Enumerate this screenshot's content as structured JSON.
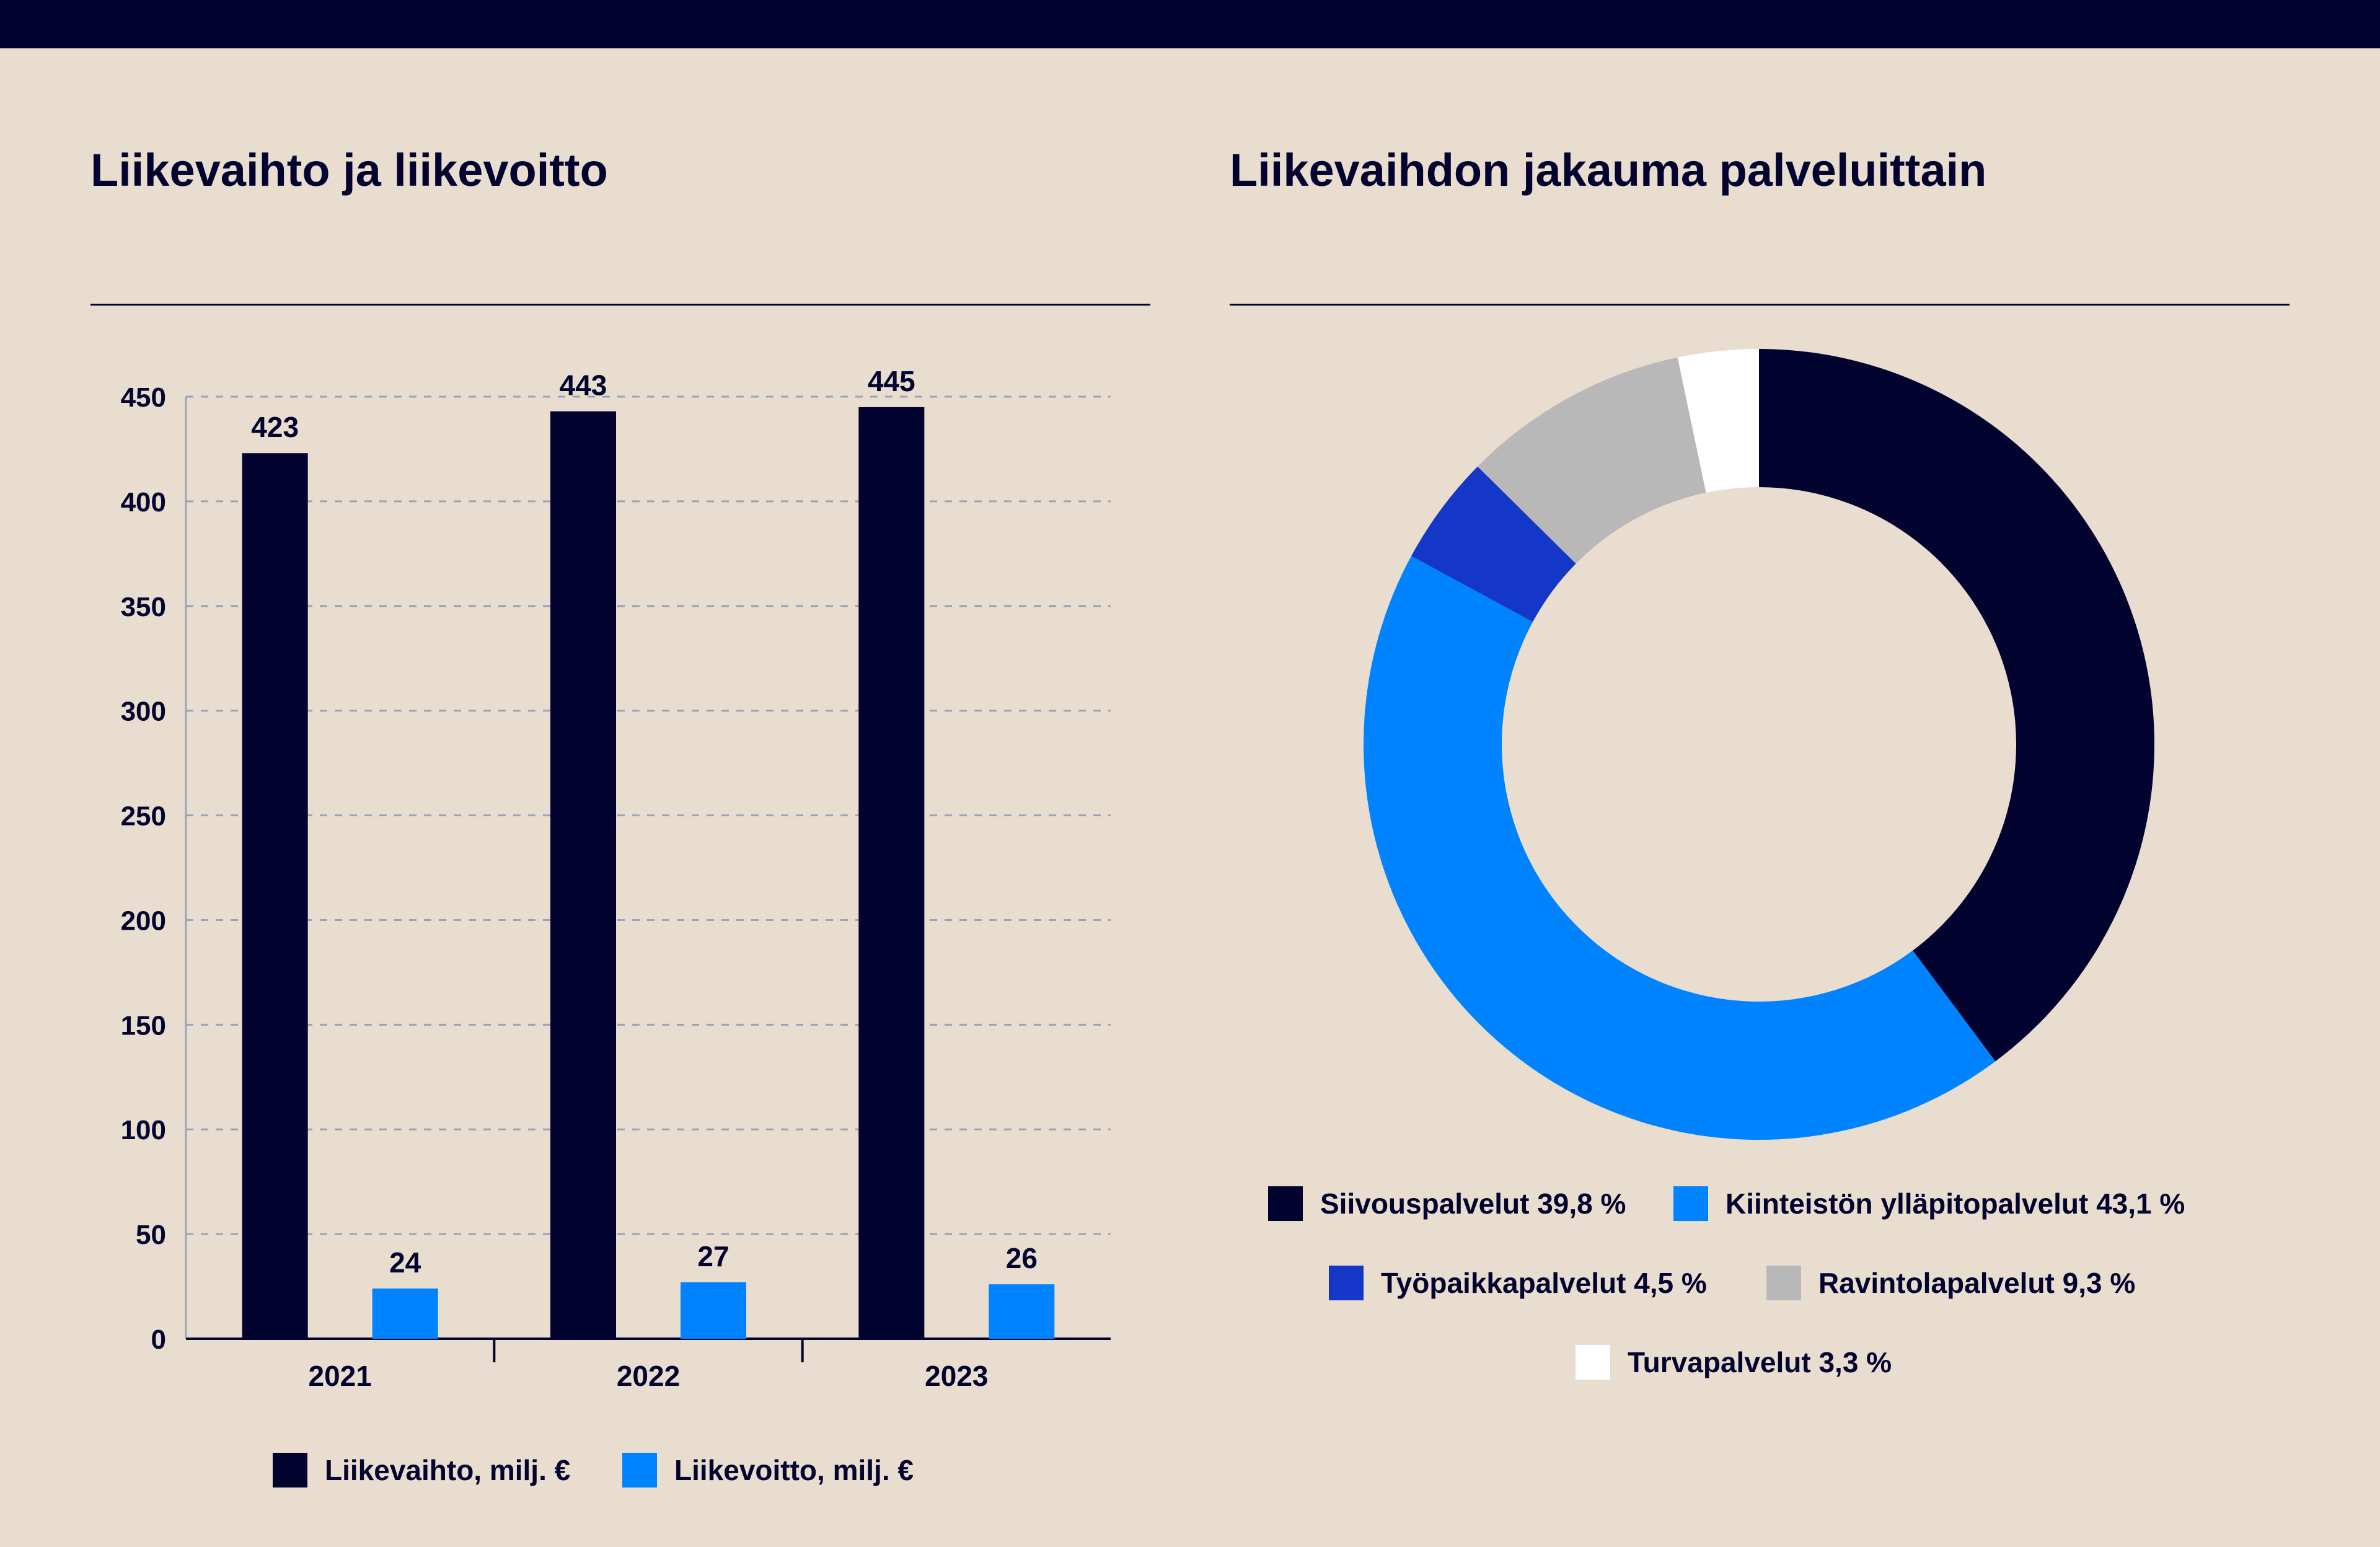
{
  "colors": {
    "background": "#e8ddcf",
    "navy": "#03032f",
    "blue": "#0083ff",
    "royal_blue": "#1437c7",
    "gray": "#b8b8b8",
    "white": "#ffffff"
  },
  "chart_data": [
    {
      "type": "bar",
      "title": "Liikevaihto ja liikevoitto",
      "categories": [
        "2021",
        "2022",
        "2023"
      ],
      "series": [
        {
          "name": "Liikevaihto, milj. €",
          "values": [
            423,
            443,
            445
          ],
          "color": "#03032f"
        },
        {
          "name": "Liikevoitto, milj. €",
          "values": [
            24,
            27,
            26
          ],
          "color": "#0083ff"
        }
      ],
      "ylim": [
        0,
        450
      ],
      "yticks": [
        "0",
        "50",
        "100",
        "150",
        "200",
        "250",
        "300",
        "350",
        "400",
        "450"
      ],
      "grid": "dashed horizontal",
      "legend": "bottom"
    },
    {
      "type": "pie",
      "style": "donut",
      "title": "Liikevaihdon jakauma palveluittain",
      "slices": [
        {
          "label": "Siivouspalvelut 39,8 %",
          "value": 39.8,
          "color": "#03032f"
        },
        {
          "label": "Kiinteistön ylläpitopalvelut 43,1 %",
          "value": 43.1,
          "color": "#0083ff"
        },
        {
          "label": "Työpaikkapalvelut 4,5 %",
          "value": 4.5,
          "color": "#1437c7"
        },
        {
          "label": "Ravintolapalvelut 9,3 %",
          "value": 9.3,
          "color": "#b8b8b8"
        },
        {
          "label": "Turvapalvelut 3,3 %",
          "value": 3.3,
          "color": "#ffffff"
        }
      ],
      "legend": "bottom"
    }
  ]
}
